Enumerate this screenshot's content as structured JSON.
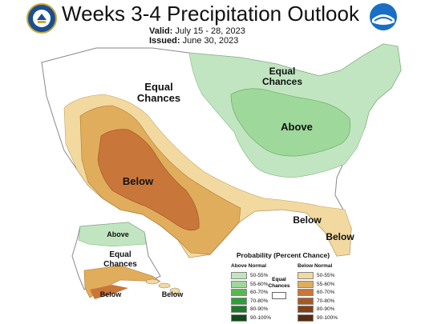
{
  "title": "Weeks 3-4 Precipitation Outlook",
  "valid": {
    "label": "Valid:",
    "value": "July 15 - 28, 2023"
  },
  "issued": {
    "label": "Issued:",
    "value": "June 30, 2023"
  },
  "logos": {
    "left": "doc-seal-icon",
    "right": "noaa-logo-icon"
  },
  "colors": {
    "above": [
      "#c1e5c1",
      "#9ed89a",
      "#58b84f",
      "#2e9e3a",
      "#1f7a2a",
      "#0d4d16"
    ],
    "below": [
      "#f2d9a0",
      "#e0ad5c",
      "#c9763a",
      "#a85a25",
      "#864012",
      "#5b2a0f"
    ]
  },
  "map_labels": {
    "equal_chances_west": [
      "Equal",
      "Chances"
    ],
    "equal_chances_great_lakes": [
      "Equal",
      "Chances"
    ],
    "above_east": "Above",
    "below_southwest": "Below",
    "below_southeast": "Below",
    "below_florida": "Below",
    "above_alaska": "Above",
    "equal_chances_alaska": [
      "Equal",
      "Chances"
    ],
    "below_alaska": "Below",
    "below_hawaii": "Below"
  },
  "legend": {
    "title": "Probability (Percent Chance)",
    "above_header": "Above Normal",
    "below_header": "Below Normal",
    "equal_label": [
      "Equal",
      "Chances"
    ],
    "above_rows": [
      "50-55%",
      "55-60%",
      "60-70%",
      "70-80%",
      "80-90%",
      "90-100%"
    ],
    "below_rows": [
      "50-55%",
      "55-60%",
      "60-70%",
      "70-80%",
      "80-90%",
      "90-100%"
    ]
  }
}
